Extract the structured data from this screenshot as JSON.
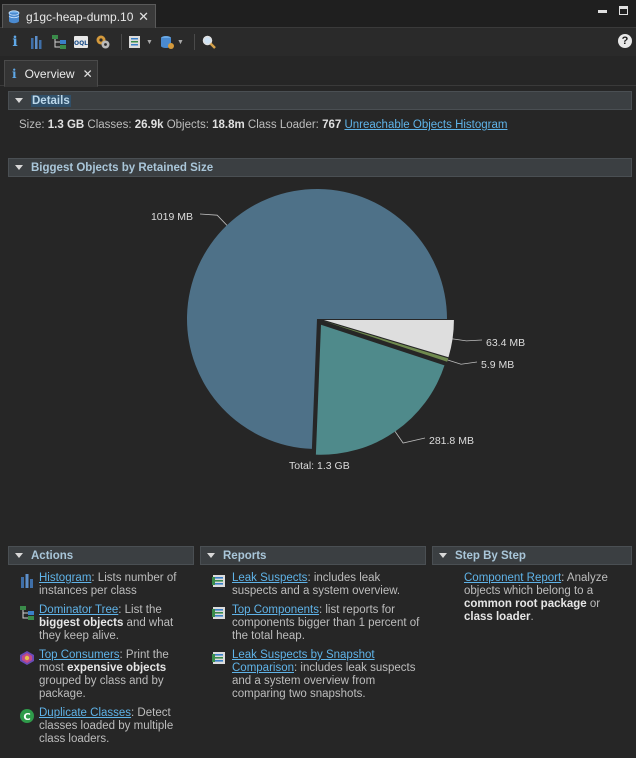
{
  "editor_tab": {
    "title": "g1gc-heap-dump.10"
  },
  "view_tab": {
    "title": "Overview"
  },
  "details": {
    "title": "Details",
    "size_label": "Size:",
    "size_value": "1.3 GB",
    "classes_label": "Classes:",
    "classes_value": "26.9k",
    "objects_label": "Objects:",
    "objects_value": "18.8m",
    "loader_label": "Class Loader:",
    "loader_value": "767",
    "histogram_link": "Unreachable Objects Histogram"
  },
  "biggest": {
    "title": "Biggest Objects by Retained Size",
    "chart_data": {
      "type": "pie",
      "unit": "MB",
      "slices": [
        {
          "label": "1019 MB",
          "value": 1019,
          "color": "#4e7188",
          "exploded": false
        },
        {
          "label": "63.4 MB",
          "value": 63.4,
          "color": "#dedede",
          "exploded": true
        },
        {
          "label": "5.9 MB",
          "value": 5.9,
          "color": "#6f8a4e",
          "exploded": true
        },
        {
          "label": "281.8 MB",
          "value": 281.8,
          "color": "#4f8a8b",
          "exploded": true
        }
      ],
      "total_label": "Total: 1.3 GB"
    }
  },
  "actions": {
    "title": "Actions",
    "items": [
      {
        "link": "Histogram",
        "pre": ": Lists number of instances per class",
        "bold": "",
        "post": ""
      },
      {
        "link": "Dominator Tree",
        "pre": ": List the ",
        "bold": "biggest objects",
        "post": " and what they keep alive."
      },
      {
        "link": "Top Consumers",
        "pre": ": Print the most ",
        "bold": "expensive objects",
        "post": " grouped by class and by package."
      },
      {
        "link": "Duplicate Classes",
        "pre": ": Detect classes loaded by multiple class loaders.",
        "bold": "",
        "post": ""
      }
    ]
  },
  "reports": {
    "title": "Reports",
    "items": [
      {
        "link": "Leak Suspects",
        "text": ": includes leak suspects and a system overview."
      },
      {
        "link": "Top Components",
        "text": ": list reports for components bigger than 1 percent of the total heap."
      },
      {
        "link": "Leak Suspects by Snapshot Comparison",
        "text": ": includes leak suspects and a system overview from comparing two snapshots."
      }
    ]
  },
  "stepbystep": {
    "title": "Step By Step",
    "link": "Component Report",
    "pre": ": Analyze objects which belong to a ",
    "bold1": "common root package",
    "mid": " or ",
    "bold2": "class loader",
    "post": "."
  },
  "icons": {
    "editor_tab": "heap-dump-icon",
    "toolbar": [
      "info-icon",
      "histogram-icon",
      "dominator-tree-icon",
      "oql-icon",
      "thread-icon",
      "query-browser-icon",
      "heap-dump-overview-icon",
      "search-icon"
    ],
    "help": "help-icon"
  },
  "colors": {
    "link": "#5fb3e8",
    "section_title": "#a9c6d9",
    "background": "#262626"
  }
}
